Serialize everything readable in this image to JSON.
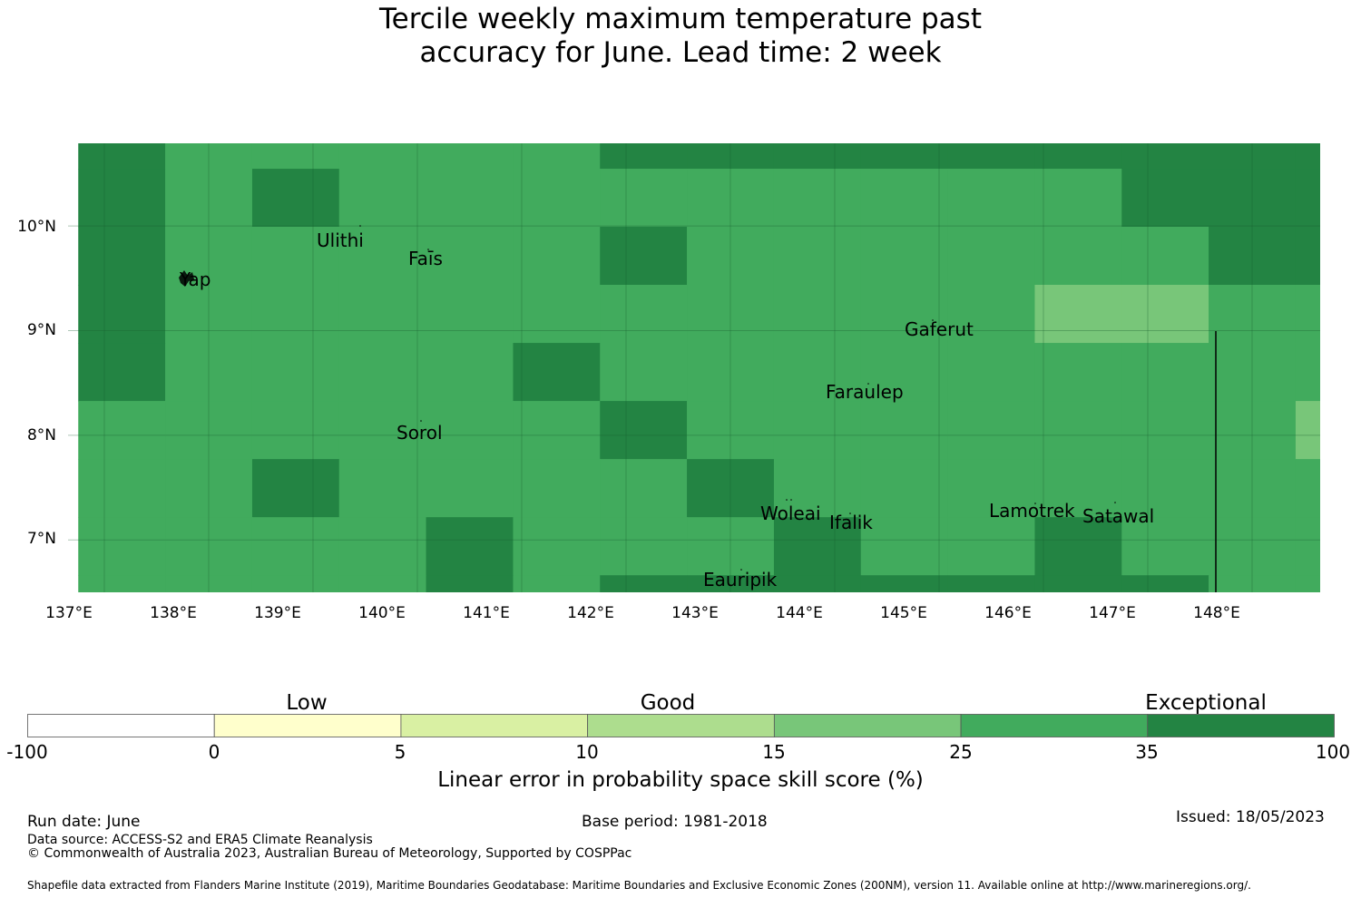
{
  "title": {
    "line1": "Tercile weekly maximum temperature past",
    "line2": "accuracy for June. Lead time: 2 week"
  },
  "map": {
    "x_ticks": [
      "137°E",
      "138°E",
      "139°E",
      "140°E",
      "141°E",
      "142°E",
      "143°E",
      "144°E",
      "145°E",
      "146°E",
      "147°E",
      "148°E"
    ],
    "y_ticks": [
      "10°N",
      "9°N",
      "8°N",
      "7°N"
    ],
    "places": [
      "Yap",
      "Ulithi",
      "Faīs",
      "Gaferut",
      "Faraulep",
      "Sorol",
      "Woleai",
      "Ifalik",
      "Lamotrek",
      "Satawal",
      "Eauripik"
    ],
    "grid_lon": [
      136.75,
      137.583,
      138.417,
      139.25,
      140.083,
      140.917,
      141.75,
      142.583,
      143.417,
      144.25,
      145.083,
      145.917,
      146.75,
      147.583,
      148.417,
      149.25
    ],
    "grid_lat": [
      10.79,
      10.547,
      9.993,
      9.438,
      8.883,
      8.328,
      7.773,
      7.218,
      6.663,
      6.5
    ],
    "skill_class": [
      [
        "exceptional",
        "good",
        "good",
        "good",
        "good",
        "good",
        "exceptional",
        "exceptional",
        "exceptional",
        "exceptional",
        "exceptional",
        "exceptional",
        "exceptional",
        "exceptional",
        "exceptional"
      ],
      [
        "exceptional",
        "good",
        "exceptional",
        "good",
        "good",
        "good",
        "good",
        "good",
        "good",
        "good",
        "good",
        "good",
        "exceptional",
        "exceptional",
        "exceptional"
      ],
      [
        "exceptional",
        "good",
        "good",
        "good",
        "good",
        "good",
        "exceptional",
        "good",
        "good",
        "good",
        "good",
        "good",
        "good",
        "exceptional",
        "exceptional"
      ],
      [
        "exceptional",
        "good",
        "good",
        "good",
        "good",
        "good",
        "good",
        "good",
        "good",
        "good",
        "good",
        "moderate",
        "moderate",
        "good",
        "good"
      ],
      [
        "exceptional",
        "good",
        "good",
        "good",
        "good",
        "exceptional",
        "good",
        "good",
        "good",
        "good",
        "good",
        "good",
        "good",
        "good",
        "good"
      ],
      [
        "good",
        "good",
        "good",
        "good",
        "good",
        "good",
        "exceptional",
        "good",
        "good",
        "good",
        "good",
        "good",
        "good",
        "good",
        "moderate"
      ],
      [
        "good",
        "good",
        "exceptional",
        "good",
        "good",
        "good",
        "good",
        "exceptional",
        "good",
        "good",
        "good",
        "good",
        "good",
        "good",
        "good"
      ],
      [
        "good",
        "good",
        "good",
        "good",
        "exceptional",
        "good",
        "good",
        "good",
        "exceptional",
        "good",
        "good",
        "exceptional",
        "good",
        "good",
        "good"
      ],
      [
        "good",
        "good",
        "good",
        "good",
        "exceptional",
        "good",
        "exceptional",
        "exceptional",
        "exceptional",
        "exceptional",
        "exceptional",
        "exceptional",
        "exceptional",
        "good",
        "good"
      ]
    ]
  },
  "colorbar": {
    "categories": [
      "Low",
      "Good",
      "Exceptional"
    ],
    "ticks": [
      "-100",
      "0",
      "5",
      "10",
      "15",
      "25",
      "35",
      "100"
    ],
    "bins": [
      {
        "from": -100,
        "to": 0,
        "color": "#ffffff"
      },
      {
        "from": 0,
        "to": 5,
        "color": "#ffffcc"
      },
      {
        "from": 5,
        "to": 10,
        "color": "#d9f0a3"
      },
      {
        "from": 10,
        "to": 15,
        "color": "#addd8e"
      },
      {
        "from": 15,
        "to": 25,
        "color": "#78c679"
      },
      {
        "from": 25,
        "to": 35,
        "color": "#41ab5d"
      },
      {
        "from": 35,
        "to": 100,
        "color": "#238443"
      }
    ],
    "label": "Linear error in probability space skill score (%)"
  },
  "colors": {
    "exceptional": "#238443",
    "good": "#41ab5d",
    "moderate": "#78c679"
  },
  "footer": {
    "run_date": "Run date: June",
    "base_period": "Base period: 1981-2018",
    "issued": "Issued: 18/05/2023",
    "data_source": "Data source: ACCESS-S2 and ERA5 Climate Reanalysis",
    "copyright": "© Commonwealth of Australia 2023, Australian Bureau of Meteorology, Supported by COSPPac",
    "shapefile": "Shapefile data extracted from Flanders Marine Institute (2019), Maritime Boundaries Geodatabase: Maritime Boundaries and Exclusive Economic Zones (200NM), version 11. Available online at http://www.marineregions.org/."
  }
}
